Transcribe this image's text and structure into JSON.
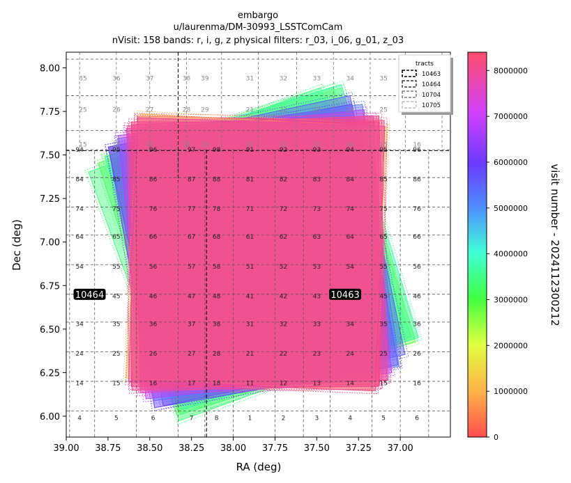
{
  "chart_data": {
    "type": "scatter",
    "title_lines": [
      "embargo",
      "u/laurenma/DM-30993_LSSTComCam",
      "nVisit: 158  bands: r, i, g, z  physical filters: r_03, i_06, g_01, z_03"
    ],
    "xlabel": "RA (deg)",
    "ylabel": "Dec (deg)",
    "xlim": [
      39.0,
      36.7
    ],
    "ylim": [
      5.88,
      8.09
    ],
    "x_ticks": [
      39.0,
      38.75,
      38.5,
      38.25,
      38.0,
      37.75,
      37.5,
      37.25,
      37.0
    ],
    "x_tick_labels": [
      "39.00",
      "38.75",
      "38.50",
      "38.25",
      "38.00",
      "37.75",
      "37.50",
      "37.25",
      "37.00"
    ],
    "y_ticks": [
      6.0,
      6.25,
      6.5,
      6.75,
      7.0,
      7.25,
      7.5,
      7.75,
      8.0
    ],
    "y_tick_labels": [
      "6.00",
      "6.25",
      "6.50",
      "6.75",
      "7.00",
      "7.25",
      "7.50",
      "7.75",
      "8.00"
    ],
    "colorbar": {
      "label": "visit number - 2024112300212",
      "min": 0,
      "max": 8400000,
      "ticks": [
        0,
        1000000,
        2000000,
        3000000,
        4000000,
        5000000,
        6000000,
        7000000,
        8000000
      ],
      "tick_labels": [
        "0",
        "1000000",
        "2000000",
        "3000000",
        "4000000",
        "5000000",
        "6000000",
        "7000000",
        "8000000"
      ]
    },
    "legend": {
      "title": "tracts",
      "placement": "upper right",
      "entries": [
        {
          "label": "10463",
          "color": "#000000"
        },
        {
          "label": "10464",
          "color": "#333333"
        },
        {
          "label": "10704",
          "color": "#777777"
        },
        {
          "label": "10705",
          "color": "#bbbbbb"
        }
      ]
    },
    "tract_labels": [
      {
        "label": "10464",
        "ra": 38.86,
        "dec": 6.7
      },
      {
        "label": "10463",
        "ra": 37.33,
        "dec": 6.7
      }
    ],
    "patch_columns_ra": [
      38.95,
      38.7,
      38.48,
      38.28,
      38.1,
      37.9,
      37.7,
      37.48,
      37.28,
      37.08
    ],
    "patch_columns_ra_upper": [
      38.88,
      38.62,
      38.4,
      38.18,
      37.95,
      37.72,
      37.5,
      37.25,
      37.03,
      36.83
    ],
    "patch_rows": [
      {
        "dec": 5.99,
        "labels": [
          "4",
          "5",
          "6",
          "7",
          "8",
          "9",
          "1",
          "2",
          "3",
          "4",
          "5",
          "6",
          "7"
        ]
      },
      {
        "dec": 6.19,
        "labels": [
          "14",
          "15",
          "16",
          "17",
          "18",
          "19",
          "11",
          "12",
          "13",
          "14",
          "15",
          "16",
          "17"
        ]
      },
      {
        "dec": 6.36,
        "labels": [
          "24",
          "25",
          "26",
          "27",
          "28",
          "29",
          "21",
          "22",
          "23",
          "24",
          "25",
          "26",
          "27"
        ]
      },
      {
        "dec": 6.53,
        "labels": [
          "34",
          "35",
          "36",
          "37",
          "38",
          "39",
          "31",
          "32",
          "33",
          "34",
          "35",
          "36",
          "37"
        ]
      },
      {
        "dec": 6.69,
        "labels": [
          "44",
          "45",
          "46",
          "47",
          "48",
          "49",
          "41",
          "42",
          "43",
          "44",
          "45",
          "46",
          "47"
        ]
      },
      {
        "dec": 6.86,
        "labels": [
          "54",
          "55",
          "56",
          "57",
          "58",
          "59",
          "51",
          "52",
          "53",
          "54",
          "55",
          "56",
          "57"
        ]
      },
      {
        "dec": 7.03,
        "labels": [
          "64",
          "65",
          "66",
          "67",
          "68",
          "69",
          "61",
          "62",
          "63",
          "64",
          "65",
          "66",
          "67"
        ]
      },
      {
        "dec": 7.19,
        "labels": [
          "74",
          "75",
          "76",
          "77",
          "78",
          "79",
          "71",
          "72",
          "73",
          "74",
          "75",
          "76",
          "77"
        ]
      },
      {
        "dec": 7.36,
        "labels": [
          "84",
          "85",
          "86",
          "87",
          "88",
          "89",
          "81",
          "82",
          "83",
          "84",
          "85",
          "86",
          "87"
        ]
      },
      {
        "dec": 7.53,
        "labels": [
          "94",
          "95",
          "96",
          "97",
          "98",
          "99",
          "91",
          "92",
          "93",
          "94",
          "95",
          "96",
          "97"
        ]
      }
    ],
    "upper_tract_rows": [
      {
        "dec": 7.56,
        "labels": [
          "15",
          "16",
          "17",
          "18",
          "19",
          "11",
          "12",
          "13",
          "14",
          "15",
          "16",
          "17",
          "18"
        ]
      },
      {
        "dec": 7.76,
        "labels": [
          "25",
          "26",
          "27",
          "28",
          "29",
          "21",
          "22",
          "23",
          "24",
          "25",
          "26",
          "27",
          "28"
        ]
      },
      {
        "dec": 7.94,
        "labels": [
          "35",
          "36",
          "37",
          "38",
          "39",
          "31",
          "32",
          "33",
          "34",
          "35",
          "36",
          "37",
          "38"
        ]
      }
    ],
    "visit_footprints": [
      {
        "center": [
          37.86,
          6.95
        ],
        "rotation_deg": 18,
        "visit": 3000000
      },
      {
        "center": [
          37.84,
          6.96
        ],
        "rotation_deg": 16,
        "visit": 2600000
      },
      {
        "center": [
          37.9,
          6.93
        ],
        "rotation_deg": 20,
        "visit": 3400000
      },
      {
        "center": [
          37.83,
          6.97
        ],
        "rotation_deg": 17,
        "visit": 3800000
      },
      {
        "center": [
          37.86,
          6.95
        ],
        "rotation_deg": 12,
        "visit": 5600000
      },
      {
        "center": [
          37.88,
          6.92
        ],
        "rotation_deg": 10,
        "visit": 6000000
      },
      {
        "center": [
          37.85,
          6.94
        ],
        "rotation_deg": 8,
        "visit": 5200000
      },
      {
        "center": [
          37.87,
          6.93
        ],
        "rotation_deg": 6,
        "visit": 6800000
      },
      {
        "center": [
          37.86,
          6.93
        ],
        "rotation_deg": 3,
        "visit": 7400000
      },
      {
        "center": [
          37.88,
          6.92
        ],
        "rotation_deg": 1,
        "visit": 8000000
      },
      {
        "center": [
          37.85,
          6.95
        ],
        "rotation_deg": -1,
        "visit": 8300000
      },
      {
        "center": [
          37.86,
          6.94
        ],
        "rotation_deg": -3,
        "visit": 1200000
      },
      {
        "center": [
          37.87,
          6.93
        ],
        "rotation_deg": 0,
        "visit": 8200000
      },
      {
        "center": [
          37.84,
          6.94
        ],
        "rotation_deg": 2,
        "visit": 8100000
      },
      {
        "center": [
          37.86,
          6.93
        ],
        "rotation_deg": -2,
        "visit": 7900000
      }
    ]
  }
}
